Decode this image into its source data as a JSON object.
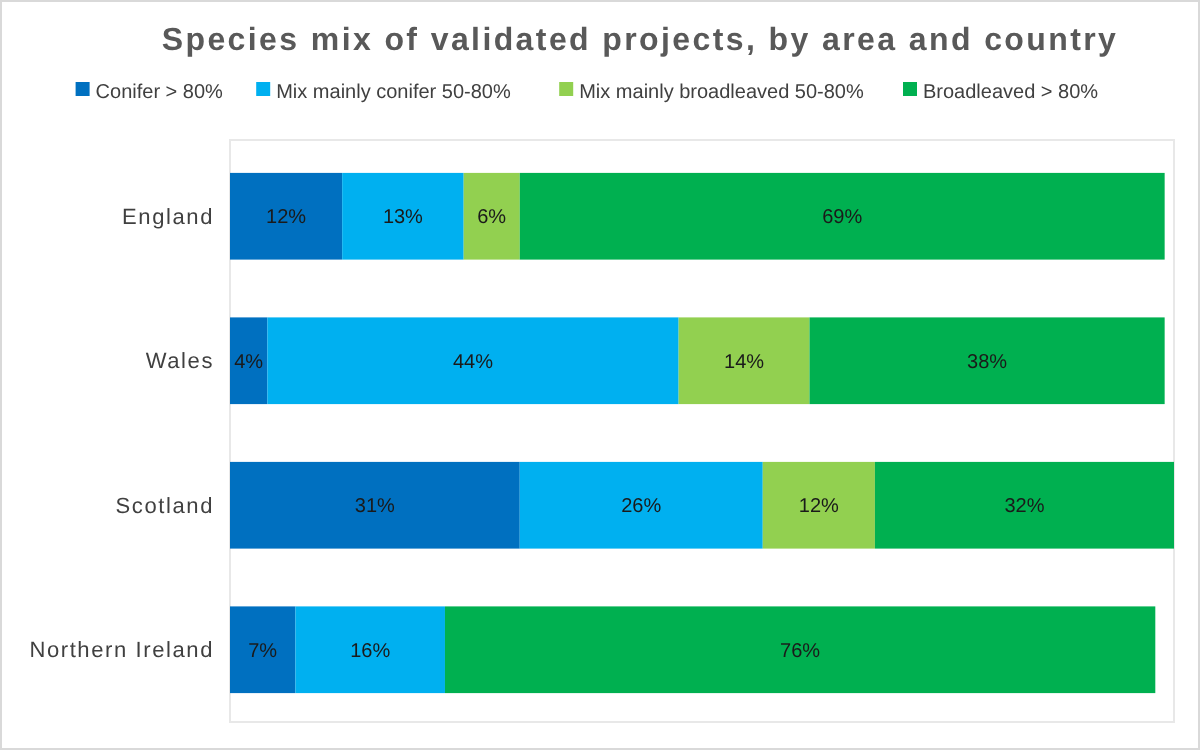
{
  "chart_data": {
    "type": "bar",
    "orientation": "horizontal",
    "stacked": true,
    "title": "Species mix of validated projects, by area and country",
    "categories": [
      "England",
      "Wales",
      "Scotland",
      "Northern Ireland"
    ],
    "series": [
      {
        "name": "Conifer > 80%",
        "color": "#0070c0",
        "values": [
          12,
          4,
          31,
          7
        ],
        "value_labels": [
          "12%",
          "4%",
          "31%",
          "7%"
        ]
      },
      {
        "name": "Mix mainly conifer 50-80%",
        "color": "#00b0f0",
        "values": [
          13,
          44,
          26,
          16
        ],
        "value_labels": [
          "13%",
          "44%",
          "26%",
          "16%"
        ]
      },
      {
        "name": "Mix mainly broadleaved 50-80%",
        "color": "#92d050",
        "values": [
          6,
          14,
          12,
          null
        ],
        "value_labels": [
          "6%",
          "14%",
          "12%",
          null
        ]
      },
      {
        "name": "Broadleaved > 80%",
        "color": "#00b050",
        "values": [
          69,
          38,
          32,
          76
        ],
        "value_labels": [
          "69%",
          "38%",
          "32%",
          "76%"
        ]
      }
    ],
    "legend": "top",
    "grid": false
  }
}
